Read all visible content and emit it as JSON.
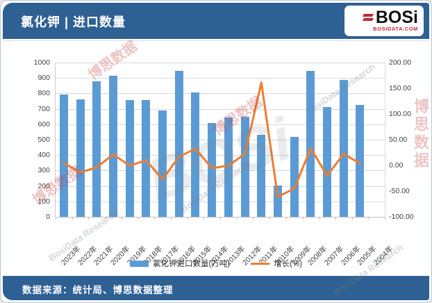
{
  "header": {
    "title": "氯化钾 | 进口数量"
  },
  "logo": {
    "name": "BOSi",
    "domain": "BOSIDATA.COM"
  },
  "footer": {
    "source": "数据来源：统计局、博思数据整理"
  },
  "watermarks": {
    "cn": "博思数据",
    "en": "BosiData Research",
    "logo": "BOSi"
  },
  "colors": {
    "header_bg": "#2e6093",
    "bar": "#5b9bd5",
    "line": "#ed7d31",
    "grid": "#d9d9d9",
    "logo_red": "#c4262e"
  },
  "chart_data": {
    "type": "bar",
    "combo": "bar+line",
    "title": "氯化钾 | 进口数量",
    "categories": [
      "2023年",
      "2022年",
      "2021年",
      "2020年",
      "2019年",
      "2018年",
      "2017年",
      "2016年",
      "2015年",
      "2014年",
      "2013年",
      "2012年",
      "2011年",
      "2010年",
      "2009年",
      "2008年",
      "2007年",
      "2006年",
      "2005年",
      "2004年"
    ],
    "series": [
      {
        "name": "氯化钾进口数量(万吨)",
        "type": "bar",
        "axis": "left",
        "values": [
          795,
          760,
          880,
          915,
          755,
          758,
          690,
          945,
          808,
          610,
          645,
          648,
          530,
          203,
          520,
          945,
          710,
          888,
          725,
          null
        ]
      },
      {
        "name": "增长(%)",
        "type": "line",
        "axis": "right",
        "values": [
          4.6,
          -13.6,
          -3.8,
          21.2,
          -0.4,
          9.9,
          -27.0,
          17.1,
          32.5,
          -5.4,
          -0.5,
          22.3,
          161.1,
          -61.0,
          -45.0,
          33.1,
          -20.0,
          22.5,
          3.6,
          null
        ]
      }
    ],
    "left_axis": {
      "min": 0,
      "max": 1000,
      "step": 100,
      "format": "0"
    },
    "right_axis": {
      "min": -100,
      "max": 200,
      "step": 50,
      "format": "0.00"
    },
    "grid": true,
    "legend_position": "bottom",
    "xlabel": "",
    "ylabel_left": "氯化钾进口数量(万吨)",
    "ylabel_right": "增长(%)"
  }
}
